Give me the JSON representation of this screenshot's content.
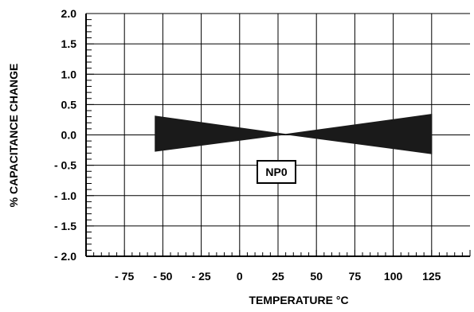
{
  "chart_data": {
    "type": "area",
    "title": "",
    "xlabel": "TEMPERATURE °C",
    "ylabel": "% CAPACITANCE CHANGE",
    "xlim": [
      -100,
      150
    ],
    "ylim": [
      -2.0,
      2.0
    ],
    "x_ticks": [
      -75,
      -50,
      -25,
      0,
      25,
      50,
      75,
      100,
      125
    ],
    "x_tick_labels": [
      "- 75",
      "- 50",
      "- 25",
      "0",
      "25",
      "50",
      "75",
      "100",
      "125"
    ],
    "y_ticks": [
      2.0,
      1.5,
      1.0,
      0.5,
      0.0,
      -0.5,
      -1.0,
      -1.5,
      -2.0
    ],
    "y_tick_labels": [
      "2.0",
      "1.5",
      "1.0",
      "0.5",
      "0.0",
      "- 0.5",
      "- 1.0",
      "- 1.5",
      "- 2.0"
    ],
    "grid": true,
    "annotation": "NP0",
    "series": [
      {
        "upper": [
          {
            "x": -55,
            "y": 0.31
          },
          {
            "x": 30,
            "y": 0.01
          },
          {
            "x": 125,
            "y": 0.34
          }
        ],
        "lower": [
          {
            "x": -55,
            "y": -0.27
          },
          {
            "x": 30,
            "y": 0.01
          },
          {
            "x": 125,
            "y": -0.31
          }
        ]
      }
    ],
    "colors": {
      "fill": "#1a1a1a",
      "axis": "#000000",
      "grid": "#000000"
    }
  }
}
